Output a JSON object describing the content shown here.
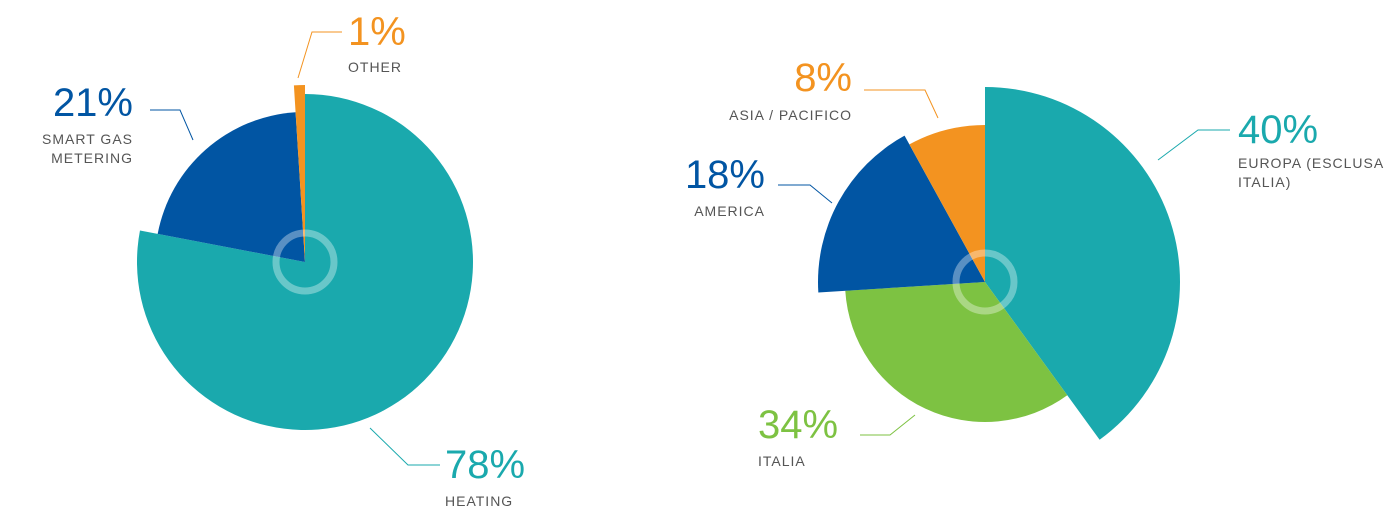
{
  "chart_data": [
    {
      "type": "pie",
      "categories": [
        "HEATING",
        "SMART GAS METERING",
        "OTHER"
      ],
      "values": [
        78,
        21,
        1
      ],
      "value_labels": [
        "78%",
        "21%",
        "1%"
      ],
      "colors": [
        "#1aa9ad",
        "#0155a3",
        "#f39320"
      ]
    },
    {
      "type": "pie",
      "categories": [
        "EUROPA (ESCLUSA ITALIA)",
        "ITALIA",
        "AMERICA",
        "ASIA / PACIFICO"
      ],
      "values": [
        40,
        34,
        18,
        8
      ],
      "value_labels": [
        "40%",
        "34%",
        "18%",
        "8%"
      ],
      "colors": [
        "#1aa9ad",
        "#7dc242",
        "#0155a3",
        "#f39320"
      ]
    }
  ]
}
